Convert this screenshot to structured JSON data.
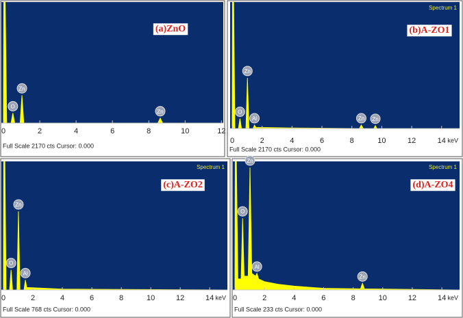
{
  "chart_data": [
    {
      "type": "line",
      "title": "(a)ZnO",
      "footer": "Full Scale 2170 cts Cursor: 0.000",
      "color": "#ffff00",
      "x": [
        0,
        0.02,
        0.1,
        0.18,
        0.42,
        0.52,
        0.62,
        0.92,
        1.02,
        1.12,
        1.4,
        8.5,
        8.63,
        8.76,
        12
      ],
      "values": [
        0,
        2170,
        2170,
        0,
        0,
        180,
        0,
        0,
        500,
        0,
        0,
        0,
        90,
        0,
        0
      ],
      "xlim": [
        0,
        12.1
      ],
      "ylim": [
        0,
        2170
      ],
      "xticks": [
        0,
        2,
        4,
        6,
        8,
        10,
        12
      ],
      "annotations": [
        {
          "text": "O",
          "x": 0.52
        },
        {
          "text": "Zn",
          "x": 1.02
        },
        {
          "text": "Zn",
          "x": 8.63
        }
      ]
    },
    {
      "type": "line",
      "title": "(b)A-ZO1",
      "spectrum_label": "Spectrum 1",
      "x_label": "keV",
      "footer": "Full Scale 2170 cts Cursor: 0.000",
      "color": "#ffff00",
      "x": [
        0,
        0.02,
        0.1,
        0.18,
        0.42,
        0.52,
        0.62,
        0.92,
        1.02,
        1.12,
        1.4,
        1.49,
        1.58,
        3.8,
        8.5,
        8.63,
        8.76,
        9.47,
        9.57,
        9.67,
        15
      ],
      "values": [
        0,
        2170,
        2170,
        0,
        0,
        170,
        0,
        0,
        870,
        0,
        0,
        60,
        20,
        10,
        0,
        60,
        0,
        0,
        50,
        0,
        0
      ],
      "xlim": [
        0,
        15.2
      ],
      "ylim": [
        0,
        2170
      ],
      "xticks": [
        0,
        2,
        4,
        6,
        8,
        10,
        12,
        14
      ],
      "annotations": [
        {
          "text": "O",
          "x": 0.52
        },
        {
          "text": "Zn",
          "x": 1.02
        },
        {
          "text": "Al",
          "x": 1.49
        },
        {
          "text": "Zn",
          "x": 8.63
        },
        {
          "text": "Zn",
          "x": 9.57
        }
      ]
    },
    {
      "type": "line",
      "title": "(c)A-ZO2",
      "spectrum_label": "Spectrum 1",
      "x_label": "keV",
      "footer": "Full Scale 768 cts Cursor: 0.000",
      "color": "#ffff00",
      "x": [
        0,
        0.02,
        0.1,
        0.18,
        0.42,
        0.52,
        0.62,
        0.92,
        1.02,
        1.12,
        1.4,
        1.49,
        1.58,
        4,
        15
      ],
      "values": [
        0,
        768,
        768,
        0,
        0,
        120,
        0,
        0,
        470,
        0,
        0,
        60,
        15,
        5,
        0
      ],
      "xlim": [
        0,
        15.2
      ],
      "ylim": [
        0,
        768
      ],
      "xticks": [
        0,
        2,
        4,
        6,
        8,
        10,
        12,
        14
      ],
      "annotations": [
        {
          "text": "O",
          "x": 0.52
        },
        {
          "text": "Zn",
          "x": 1.02
        },
        {
          "text": "Al",
          "x": 1.49
        }
      ]
    },
    {
      "type": "line",
      "title": "(d)A-ZO4",
      "spectrum_label": "Spectrum 1",
      "x_label": "keV",
      "footer": "Full Scale 233 cts Cursor: 0.000",
      "color": "#ffff00",
      "x": [
        0,
        0.02,
        0.1,
        0.2,
        0.42,
        0.52,
        0.62,
        0.9,
        1.02,
        1.14,
        1.4,
        1.49,
        1.6,
        2,
        3,
        4,
        5,
        6,
        8.5,
        8.63,
        8.76,
        15
      ],
      "values": [
        0,
        233,
        233,
        20,
        20,
        130,
        25,
        25,
        222,
        30,
        25,
        30,
        20,
        15,
        10,
        7,
        5,
        3,
        2,
        12,
        2,
        0
      ],
      "xlim": [
        0,
        15.2
      ],
      "ylim": [
        0,
        233
      ],
      "xticks": [
        0,
        2,
        4,
        6,
        8,
        10,
        12,
        14
      ],
      "annotations": [
        {
          "text": "O",
          "x": 0.52
        },
        {
          "text": "Zn",
          "x": 1.02
        },
        {
          "text": "Al",
          "x": 1.49
        },
        {
          "text": "Zn",
          "x": 8.63
        }
      ]
    }
  ]
}
